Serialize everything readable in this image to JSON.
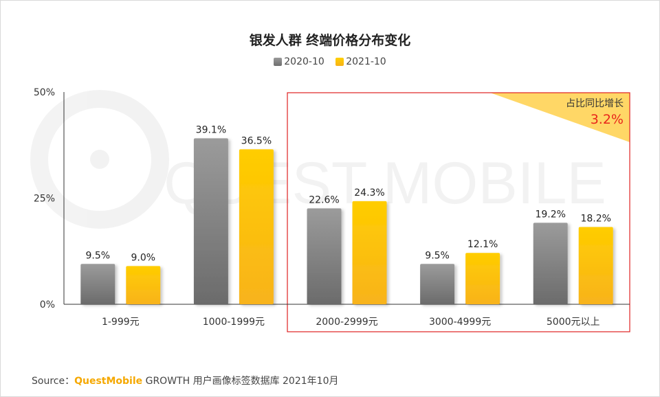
{
  "title": "银发人群 终端价格分布变化",
  "source": {
    "prefix": "Source：",
    "brand": "QuestMobile",
    "text": "GROWTH 用户画像标签数据库 2021年10月"
  },
  "watermark": "QUEST MOBILE",
  "annotation": {
    "label": "占比同比增长",
    "value": "3.2%",
    "value_color": "#e8261b",
    "highlight_categories": [
      "2000-2999元",
      "3000-4999元",
      "5000元以上"
    ]
  },
  "chart_data": {
    "type": "bar",
    "categories": [
      "1-999元",
      "1000-1999元",
      "2000-2999元",
      "3000-4999元",
      "5000元以上"
    ],
    "series": [
      {
        "name": "2020-10",
        "values": [
          9.5,
          39.1,
          22.6,
          9.5,
          19.2
        ],
        "labels": [
          "9.5%",
          "39.1%",
          "22.6%",
          "9.5%",
          "19.2%"
        ],
        "color": "#8a8a8a"
      },
      {
        "name": "2021-10",
        "values": [
          9.0,
          36.5,
          24.3,
          12.1,
          18.2
        ],
        "labels": [
          "9.0%",
          "36.5%",
          "24.3%",
          "12.1%",
          "18.2%"
        ],
        "color": "#ffc400"
      }
    ],
    "yticks": [
      "0%",
      "25%",
      "50%"
    ],
    "ytick_values": [
      0,
      25,
      50
    ],
    "ylim": [
      0,
      50
    ],
    "grid": false,
    "legend_position": "top-center"
  }
}
